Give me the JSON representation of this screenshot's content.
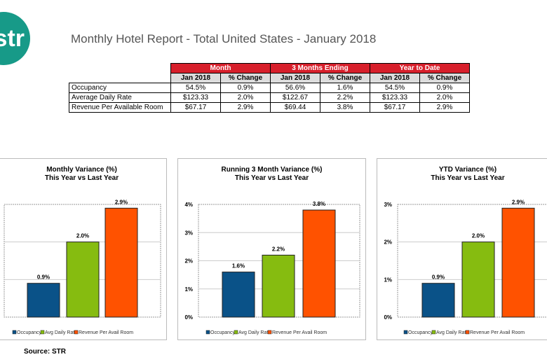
{
  "logo": "str",
  "title": "Monthly Hotel Report - Total United States - January 2018",
  "table": {
    "groups": [
      "Month",
      "3 Months Ending",
      "Year to Date"
    ],
    "subheaders": [
      "Jan 2018",
      "% Change",
      "Jan 2018",
      "% Change",
      "Jan 2018",
      "% Change"
    ],
    "rows": [
      {
        "label": "Occupancy",
        "values": [
          "54.5%",
          "0.9%",
          "56.6%",
          "1.6%",
          "54.5%",
          "0.9%"
        ]
      },
      {
        "label": "Average Daily Rate",
        "values": [
          "$123.33",
          "2.0%",
          "$122.67",
          "2.2%",
          "$123.33",
          "2.0%"
        ]
      },
      {
        "label": "Revenue Per Available Room",
        "values": [
          "$67.17",
          "2.9%",
          "$69.44",
          "3.8%",
          "$67.17",
          "2.9%"
        ]
      }
    ]
  },
  "colors": {
    "Occupancy": "#0a5288",
    "Avg Daily Rate": "#86bc10",
    "Revenue Per Avail Room": "#ff5200",
    "header": "#d71f2b",
    "logo": "#179a88"
  },
  "chart_data": [
    {
      "type": "bar",
      "title": "Monthly Variance (%)",
      "subtitle": "This Year vs Last Year",
      "categories": [
        "Occupancy",
        "Avg Daily Rate",
        "Revenue Per Avail Room"
      ],
      "values": [
        0.9,
        2.0,
        2.9
      ],
      "data_labels": [
        "0.9%",
        "2.0%",
        "2.9%"
      ],
      "ylim": [
        0,
        3
      ],
      "yticks": [],
      "grid": true,
      "legend": "bottom"
    },
    {
      "type": "bar",
      "title": "Running 3 Month Variance (%)",
      "subtitle": "This Year vs Last Year",
      "categories": [
        "Occupancy",
        "Avg Daily Rate",
        "Revenue Per Avail Room"
      ],
      "values": [
        1.6,
        2.2,
        3.8
      ],
      "data_labels": [
        "1.6%",
        "2.2%",
        "3.8%"
      ],
      "ylim": [
        0,
        4
      ],
      "yticks": [
        "0%",
        "1%",
        "2%",
        "3%",
        "4%"
      ],
      "grid": true,
      "legend": "bottom"
    },
    {
      "type": "bar",
      "title": "YTD Variance (%)",
      "subtitle": "This Year vs Last Year",
      "categories": [
        "Occupancy",
        "Avg Daily Rate",
        "Revenue Per Avail Room"
      ],
      "values": [
        0.9,
        2.0,
        2.9
      ],
      "data_labels": [
        "0.9%",
        "2.0%",
        "2.9%"
      ],
      "ylim": [
        0,
        3
      ],
      "yticks": [
        "0%",
        "1%",
        "2%",
        "3%"
      ],
      "grid": true,
      "legend": "bottom"
    }
  ],
  "source": "Source: STR"
}
